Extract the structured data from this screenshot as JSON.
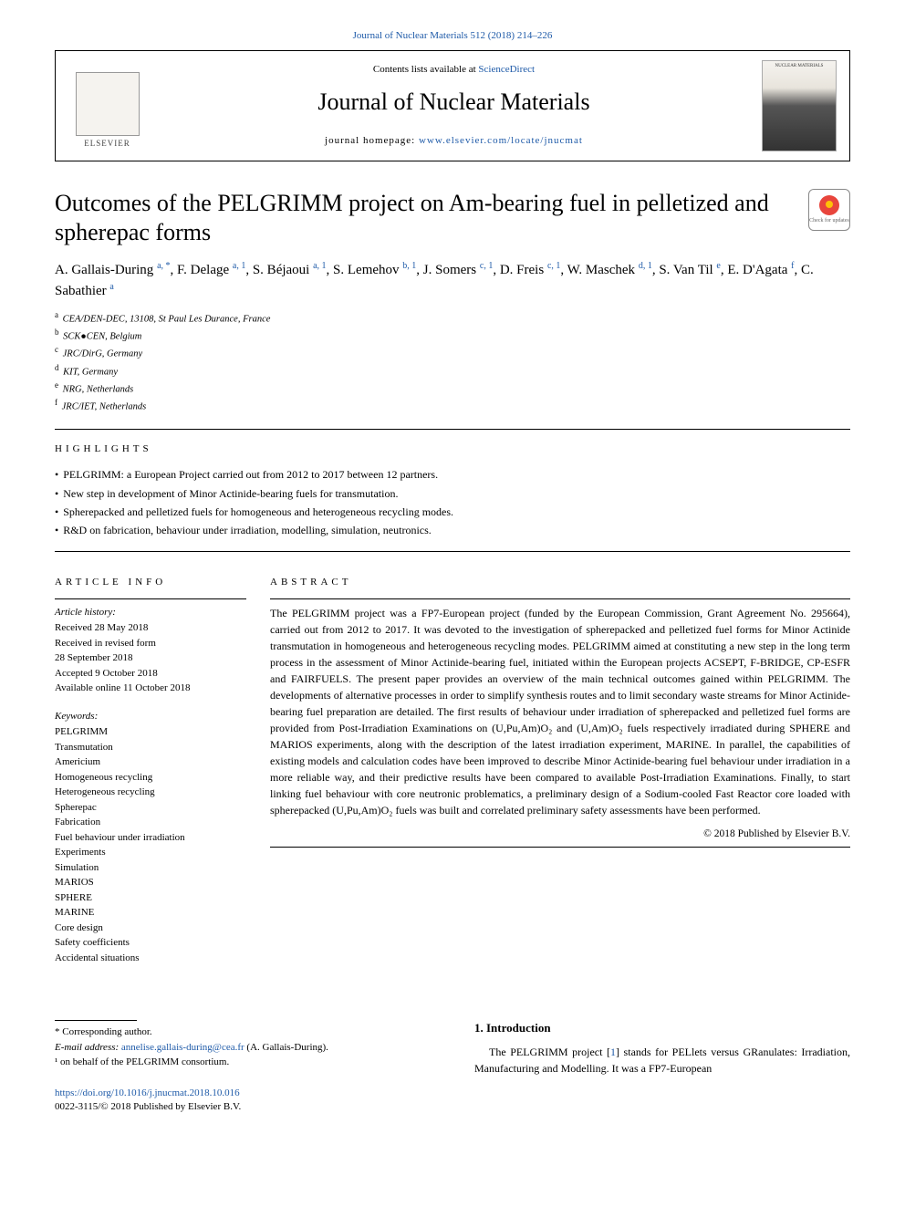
{
  "top_link_text": "Journal of Nuclear Materials 512 (2018) 214–226",
  "header": {
    "contents_prefix": "Contents lists available at ",
    "contents_link": "ScienceDirect",
    "journal": "Journal of Nuclear Materials",
    "homepage_prefix": "journal homepage: ",
    "homepage_link": "www.elsevier.com/locate/jnucmat",
    "elsevier_label": "ELSEVIER",
    "cover_label": "NUCLEAR MATERIALS"
  },
  "title": "Outcomes of the PELGRIMM project on Am-bearing fuel in pelletized and spherepac forms",
  "check_updates_label": "Check for updates",
  "authors_html": "A. Gallais-During <sup class='lnk'>a, *</sup>, F. Delage <sup class='lnk'>a, 1</sup>, S. Béjaoui <sup class='lnk'>a, 1</sup>, S. Lemehov <sup class='lnk'>b, 1</sup>, J. Somers <sup class='lnk'>c, 1</sup>, D. Freis <sup class='lnk'>c, 1</sup>, W. Maschek <sup class='lnk'>d, 1</sup>, S. Van Til <sup class='lnk'>e</sup>, E. D'Agata <sup class='lnk'>f</sup>, C. Sabathier <sup class='lnk'>a</sup>",
  "affiliations": [
    {
      "sup": "a",
      "text": "CEA/DEN-DEC, 13108, St Paul Les Durance, France"
    },
    {
      "sup": "b",
      "text": "SCK●CEN, Belgium"
    },
    {
      "sup": "c",
      "text": "JRC/DirG, Germany"
    },
    {
      "sup": "d",
      "text": "KIT, Germany"
    },
    {
      "sup": "e",
      "text": "NRG, Netherlands"
    },
    {
      "sup": "f",
      "text": "JRC/IET, Netherlands"
    }
  ],
  "highlights_head": "HIGHLIGHTS",
  "highlights": [
    "PELGRIMM: a European Project carried out from 2012 to 2017 between 12 partners.",
    "New step in development of Minor Actinide-bearing fuels for transmutation.",
    "Spherepacked and pelletized fuels for homogeneous and heterogeneous recycling modes.",
    "R&D on fabrication, behaviour under irradiation, modelling, simulation, neutronics."
  ],
  "article_info_head": "ARTICLE INFO",
  "abstract_head": "ABSTRACT",
  "history_title": "Article history:",
  "history": [
    "Received 28 May 2018",
    "Received in revised form",
    "28 September 2018",
    "Accepted 9 October 2018",
    "Available online 11 October 2018"
  ],
  "keywords_title": "Keywords:",
  "keywords": [
    "PELGRIMM",
    "Transmutation",
    "Americium",
    "Homogeneous recycling",
    "Heterogeneous recycling",
    "Spherepac",
    "Fabrication",
    "Fuel behaviour under irradiation",
    "Experiments",
    "Simulation",
    "MARIOS",
    "SPHERE",
    "MARINE",
    "Core design",
    "Safety coefficients",
    "Accidental situations"
  ],
  "abstract": "The PELGRIMM project was a FP7-European project (funded by the European Commission, Grant Agreement No. 295664), carried out from 2012 to 2017. It was devoted to the investigation of spherepacked and pelletized fuel forms for Minor Actinide transmutation in homogeneous and heterogeneous recycling modes. PELGRIMM aimed at constituting a new step in the long term process in the assessment of Minor Actinide-bearing fuel, initiated within the European projects ACSEPT, F-BRIDGE, CP-ESFR and FAIRFUELS. The present paper provides an overview of the main technical outcomes gained within PELGRIMM. The developments of alternative processes in order to simplify synthesis routes and to limit secondary waste streams for Minor Actinide-bearing fuel preparation are detailed. The first results of behaviour under irradiation of spherepacked and pelletized fuel forms are provided from Post-Irradiation Examinations on (U,Pu,Am)O₂ and (U,Am)O₂ fuels respectively irradiated during SPHERE and MARIOS experiments, along with the description of the latest irradiation experiment, MARINE. In parallel, the capabilities of existing models and calculation codes have been improved to describe Minor Actinide-bearing fuel behaviour under irradiation in a more reliable way, and their predictive results have been compared to available Post-Irradiation Examinations. Finally, to start linking fuel behaviour with core neutronic problematics, a preliminary design of a Sodium-cooled Fast Reactor core loaded with spherepacked (U,Pu,Am)O₂ fuels was built and correlated preliminary safety assessments have been performed.",
  "copyright": "© 2018 Published by Elsevier B.V.",
  "intro_head": "1.  Introduction",
  "intro_body_pre": "The PELGRIMM project [",
  "intro_ref": "1",
  "intro_body_post": "] stands for PELlets versus GRanulates: Irradiation, Manufacturing and Modelling. It was a FP7-European",
  "footnotes": {
    "corr_label": "* Corresponding author.",
    "email_label": "E-mail address: ",
    "email": "annelise.gallais-during@cea.fr",
    "email_author": " (A. Gallais-During).",
    "note1": "¹  on behalf of the PELGRIMM consortium.",
    "doi": "https://doi.org/10.1016/j.jnucmat.2018.10.016",
    "issn_line": "0022-3115/© 2018 Published by Elsevier B.V."
  },
  "colors": {
    "link": "#1e5aa8",
    "rule": "#000000",
    "text": "#000000",
    "bg": "#ffffff"
  }
}
